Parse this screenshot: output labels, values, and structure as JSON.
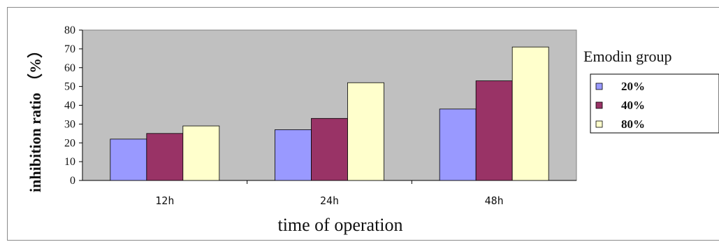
{
  "chart_data": {
    "type": "bar",
    "categories": [
      "12h",
      "24h",
      "48h"
    ],
    "series": [
      {
        "name": "20%",
        "values": [
          22,
          27,
          38
        ],
        "color": "#9999ff"
      },
      {
        "name": "40%",
        "values": [
          25,
          33,
          53
        ],
        "color": "#993366"
      },
      {
        "name": "80%",
        "values": [
          29,
          52,
          71
        ],
        "color": "#ffffcc"
      }
    ],
    "xlabel": "time of operation",
    "ylabel": "inhibition ratio （%）",
    "ylim": [
      0,
      80
    ],
    "yticks": [
      0,
      10,
      20,
      30,
      40,
      50,
      60,
      70,
      80
    ],
    "grid": false,
    "plot_background": "#c0c0c0",
    "legend": {
      "title": "Emodin group",
      "position": "right"
    }
  }
}
